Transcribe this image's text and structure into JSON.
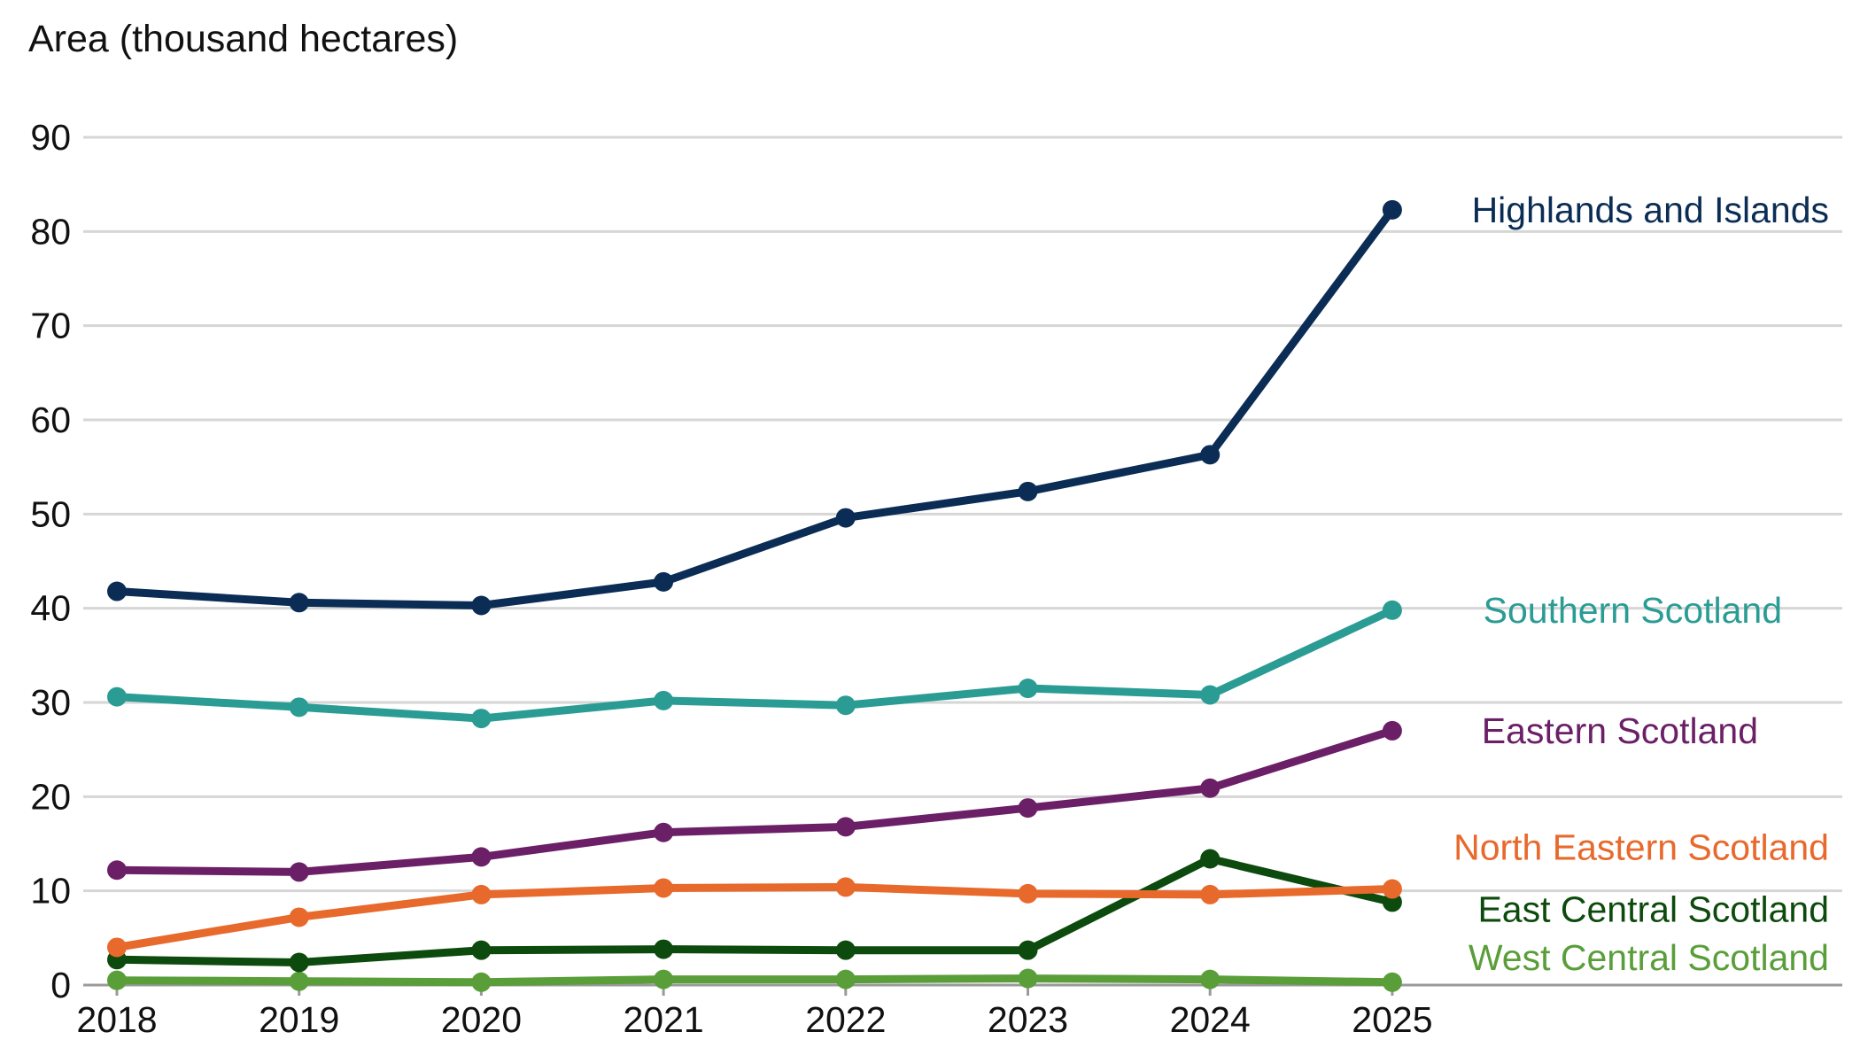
{
  "chart_data": {
    "type": "line",
    "title": "",
    "xlabel": "",
    "ylabel": "Area (thousand hectares)",
    "ylim": [
      0,
      90
    ],
    "yticks": [
      0,
      10,
      20,
      30,
      40,
      50,
      60,
      70,
      80,
      90
    ],
    "grid": true,
    "legend": "direct labels at right end of each line",
    "x": [
      "2018",
      "2019",
      "2020",
      "2021",
      "2022",
      "2023",
      "2024",
      "2025"
    ],
    "series": [
      {
        "name": "Highlands and Islands",
        "color": "#0b2d55",
        "values": [
          41.8,
          40.6,
          40.3,
          42.8,
          49.6,
          52.4,
          56.3,
          82.3
        ]
      },
      {
        "name": "Southern Scotland",
        "color": "#2a9c94",
        "values": [
          30.6,
          29.5,
          28.3,
          30.2,
          29.7,
          31.5,
          30.8,
          39.8
        ]
      },
      {
        "name": "Eastern Scotland",
        "color": "#6b1f67",
        "values": [
          12.2,
          12.0,
          13.6,
          16.2,
          16.8,
          18.8,
          20.9,
          27.0
        ]
      },
      {
        "name": "North Eastern Scotland",
        "color": "#e8692c",
        "values": [
          4.0,
          7.2,
          9.6,
          10.3,
          10.4,
          9.7,
          9.6,
          10.2
        ]
      },
      {
        "name": "East Central Scotland",
        "color": "#0d4a0d",
        "values": [
          2.7,
          2.4,
          3.7,
          3.8,
          3.7,
          3.7,
          13.4,
          8.8
        ]
      },
      {
        "name": "West Central Scotland",
        "color": "#5a9e3a",
        "values": [
          0.5,
          0.4,
          0.3,
          0.6,
          0.6,
          0.7,
          0.6,
          0.3
        ]
      }
    ]
  }
}
